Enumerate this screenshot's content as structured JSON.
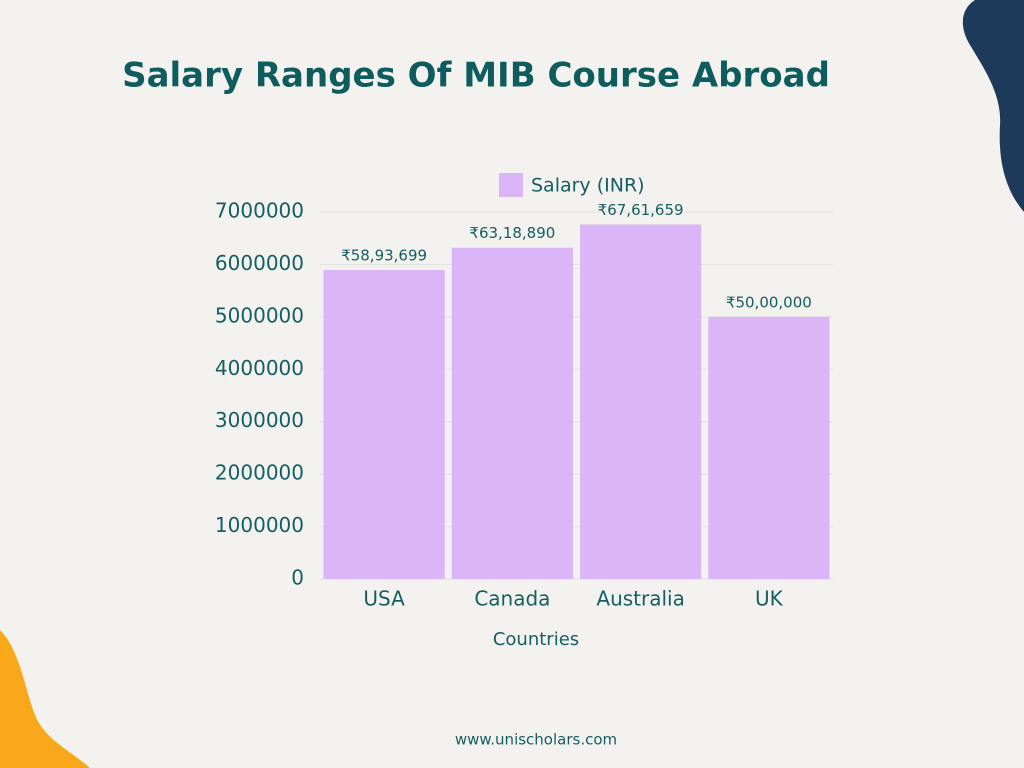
{
  "chart_data": {
    "type": "bar",
    "title": "Salary Ranges Of MIB Course Abroad",
    "x_label": "Countries",
    "categories": [
      "USA",
      "Canada",
      "Australia",
      "UK"
    ],
    "series": [
      {
        "name": "Salary (INR)",
        "color": "#dab5f8",
        "values": [
          5893699,
          6318890,
          6761659,
          5000000
        ],
        "value_labels": [
          "₹58,93,699",
          "₹63,18,890",
          "₹67,61,659",
          "₹50,00,000"
        ]
      }
    ],
    "ylim": [
      0,
      7000000
    ],
    "yticks": [
      0,
      1000000,
      2000000,
      3000000,
      4000000,
      5000000,
      6000000,
      7000000
    ],
    "grid": true,
    "legend": "top"
  },
  "footer": "www.unischolars.com"
}
